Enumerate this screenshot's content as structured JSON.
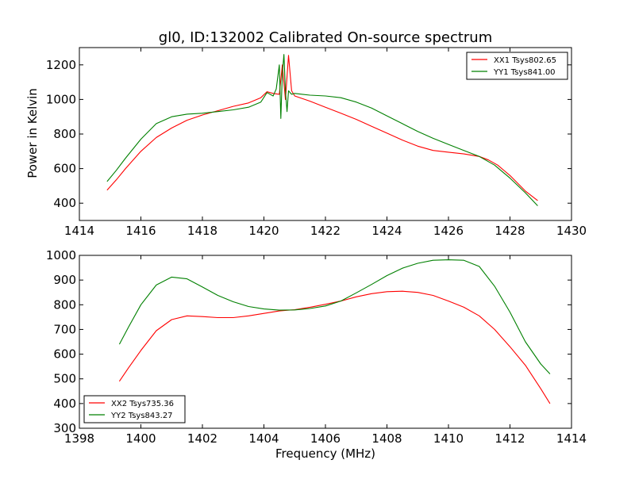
{
  "chart_data": [
    {
      "type": "line",
      "title": "gl0, ID:132002 Calibrated On-source spectrum",
      "xlabel": "",
      "ylabel": "Power in Kelvin",
      "xlim": [
        1414,
        1430
      ],
      "ylim": [
        300,
        1300
      ],
      "xticks": [
        "1414",
        "1416",
        "1418",
        "1420",
        "1422",
        "1424",
        "1426",
        "1428",
        "1430"
      ],
      "yticks": [
        "400",
        "600",
        "800",
        "1000",
        "1200"
      ],
      "legend_position": "top-right",
      "series": [
        {
          "name": "XX1 Tsys802.65",
          "color": "#ff0000",
          "x": [
            1414.9,
            1415.2,
            1415.5,
            1416.0,
            1416.5,
            1417.0,
            1417.5,
            1418.0,
            1418.5,
            1419.0,
            1419.5,
            1419.9,
            1420.1,
            1420.3,
            1420.5,
            1420.6,
            1420.7,
            1420.8,
            1420.9,
            1421.0,
            1421.5,
            1422.0,
            1422.5,
            1423.0,
            1423.5,
            1424.0,
            1424.5,
            1425.0,
            1425.5,
            1426.0,
            1426.5,
            1427.0,
            1427.3,
            1427.6,
            1428.0,
            1428.5,
            1428.9
          ],
          "y": [
            475,
            535,
            600,
            700,
            780,
            835,
            880,
            910,
            935,
            960,
            980,
            1010,
            1045,
            1035,
            1030,
            1200,
            1000,
            1255,
            1050,
            1020,
            990,
            955,
            920,
            885,
            845,
            805,
            765,
            730,
            705,
            695,
            685,
            670,
            650,
            620,
            560,
            470,
            415
          ]
        },
        {
          "name": "YY1 Tsys841.00",
          "color": "#008000",
          "x": [
            1414.9,
            1415.2,
            1415.5,
            1416.0,
            1416.5,
            1417.0,
            1417.5,
            1418.0,
            1418.5,
            1419.0,
            1419.5,
            1419.9,
            1420.1,
            1420.3,
            1420.4,
            1420.5,
            1420.55,
            1420.6,
            1420.65,
            1420.7,
            1420.75,
            1420.8,
            1420.85,
            1420.9,
            1421.0,
            1421.5,
            1422.0,
            1422.5,
            1423.0,
            1423.5,
            1424.0,
            1424.5,
            1425.0,
            1425.5,
            1426.0,
            1426.5,
            1427.0,
            1427.5,
            1428.0,
            1428.5,
            1428.9
          ],
          "y": [
            525,
            590,
            660,
            770,
            860,
            900,
            915,
            920,
            930,
            940,
            955,
            985,
            1040,
            1020,
            1060,
            1200,
            890,
            1150,
            1260,
            1050,
            930,
            1050,
            1040,
            1030,
            1035,
            1025,
            1020,
            1010,
            985,
            950,
            905,
            860,
            815,
            775,
            740,
            705,
            670,
            620,
            545,
            460,
            385
          ]
        }
      ]
    },
    {
      "type": "line",
      "title": "",
      "xlabel": "Frequency (MHz)",
      "ylabel": "",
      "xlim": [
        1398,
        1414
      ],
      "ylim": [
        300,
        1000
      ],
      "xticks": [
        "1398",
        "1400",
        "1402",
        "1404",
        "1406",
        "1408",
        "1410",
        "1412",
        "1414"
      ],
      "yticks": [
        "300",
        "400",
        "500",
        "600",
        "700",
        "800",
        "900",
        "1000"
      ],
      "legend_position": "bottom-left",
      "series": [
        {
          "name": "XX2 Tsys735.36",
          "color": "#ff0000",
          "x": [
            1399.3,
            1399.6,
            1400.0,
            1400.5,
            1401.0,
            1401.5,
            1402.0,
            1402.5,
            1403.0,
            1403.5,
            1404.0,
            1404.5,
            1405.0,
            1405.5,
            1406.0,
            1406.5,
            1407.0,
            1407.5,
            1408.0,
            1408.5,
            1409.0,
            1409.5,
            1410.0,
            1410.5,
            1411.0,
            1411.5,
            1412.0,
            1412.5,
            1413.0,
            1413.3
          ],
          "y": [
            490,
            545,
            615,
            695,
            740,
            755,
            752,
            748,
            748,
            755,
            765,
            775,
            780,
            790,
            802,
            815,
            832,
            845,
            853,
            855,
            850,
            838,
            815,
            790,
            755,
            700,
            630,
            555,
            460,
            400
          ]
        },
        {
          "name": "YY2 Tsys843.27",
          "color": "#008000",
          "x": [
            1399.3,
            1399.6,
            1400.0,
            1400.5,
            1401.0,
            1401.5,
            1402.0,
            1402.5,
            1403.0,
            1403.5,
            1404.0,
            1404.5,
            1405.0,
            1405.5,
            1406.0,
            1406.5,
            1407.0,
            1407.5,
            1408.0,
            1408.5,
            1409.0,
            1409.5,
            1410.0,
            1410.5,
            1411.0,
            1411.5,
            1412.0,
            1412.5,
            1413.0,
            1413.3
          ],
          "y": [
            640,
            710,
            800,
            880,
            912,
            905,
            872,
            838,
            812,
            793,
            783,
            778,
            779,
            785,
            795,
            815,
            848,
            882,
            918,
            948,
            968,
            980,
            982,
            980,
            955,
            875,
            770,
            650,
            560,
            520
          ]
        }
      ]
    }
  ]
}
